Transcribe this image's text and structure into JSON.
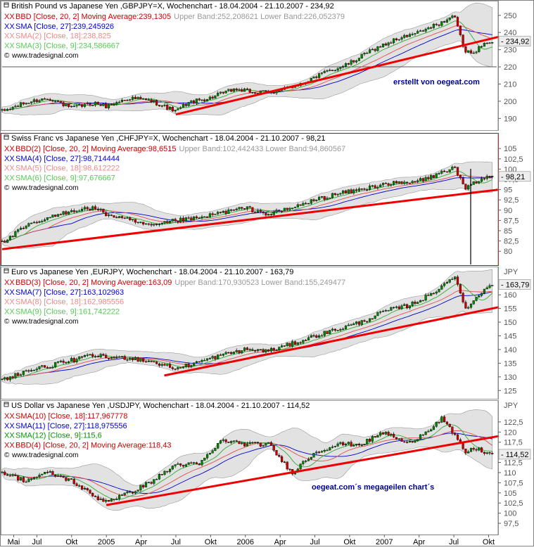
{
  "chart_data": [
    {
      "type": "line",
      "title": "British Pound vs Japanese Yen ,GBPJPY=X, Wochenchart - 18.04.2004 - 21.10.2007 - 234,92",
      "unit_label": "",
      "yticks": [
        190,
        200,
        210,
        220,
        230,
        240,
        250
      ],
      "ylim": [
        184,
        254
      ],
      "last_label": "234,92",
      "last_value": 234.92,
      "legend": [
        {
          "text": "BBD [Close, 20, 2] Moving Average:239,1305",
          "color": "#cc0000",
          "xx": true
        },
        {
          "text": "Upper Band:252,208621 Lower Band:226,052379",
          "color": "#999999",
          "xx": false
        },
        {
          "text": "SMA [Close, 27]:239,245926",
          "color": "#0000cc",
          "xx": true
        },
        {
          "text": "SMA(2) [Close, 18]:238,825",
          "color": "#ee8888",
          "xx": true
        },
        {
          "text": "SMA(3) [Close, 9]:234,586667",
          "color": "#55cc55",
          "xx": true
        }
      ],
      "watermark": "www.tradesignal.com",
      "annotation": "erstellt von oegeat.com",
      "hlines": [
        220
      ],
      "trendline": {
        "from": [
          "2005-07",
          192.3
        ],
        "to": [
          "2007-10",
          237.5
        ]
      },
      "series_points": [
        [
          "2004-04",
          194
        ],
        [
          "2004-06",
          199
        ],
        [
          "2004-08",
          202
        ],
        [
          "2004-10",
          196
        ],
        [
          "2004-12",
          199
        ],
        [
          "2005-01",
          197
        ],
        [
          "2005-03",
          202
        ],
        [
          "2005-05",
          200
        ],
        [
          "2005-07",
          194
        ],
        [
          "2005-08",
          199
        ],
        [
          "2005-10",
          202
        ],
        [
          "2005-12",
          207
        ],
        [
          "2006-02",
          205
        ],
        [
          "2006-04",
          206
        ],
        [
          "2006-06",
          211
        ],
        [
          "2006-08",
          217
        ],
        [
          "2006-10",
          222
        ],
        [
          "2006-12",
          230
        ],
        [
          "2007-02",
          236
        ],
        [
          "2007-04",
          240
        ],
        [
          "2007-06",
          246
        ],
        [
          "2007-07",
          250
        ],
        [
          "2007-08",
          228
        ],
        [
          "2007-09",
          230
        ],
        [
          "2007-10",
          234.92
        ]
      ]
    },
    {
      "type": "line",
      "title": "Swiss Franc vs Japanese Yen ,CHFJPY=X, Wochenchart - 18.04.2004 - 21.10.2007 - 98,21",
      "unit_label": "",
      "yticks": [
        80,
        82.5,
        85,
        87.5,
        90,
        92.5,
        95,
        97.5,
        100,
        102.5,
        105
      ],
      "ytick_labels": [
        "80",
        "82,5",
        "85",
        "87,5",
        "90",
        "92,5",
        "95",
        "97,5",
        "100",
        "102,5",
        "105"
      ],
      "ylim": [
        77.3,
        107.6
      ],
      "last_label": "98,21",
      "last_value": 98.21,
      "legend": [
        {
          "text": "BBD(2) [Close, 20, 2] Moving Average:98,6515",
          "color": "#cc0000",
          "xx": true
        },
        {
          "text": "Upper Band:102,442433 Lower Band:94,860567",
          "color": "#999999",
          "xx": false
        },
        {
          "text": "SMA(4) [Close, 27]:98,714444",
          "color": "#0000cc",
          "xx": true
        },
        {
          "text": "SMA(5) [Close, 18]:98,612222",
          "color": "#ee8888",
          "xx": true
        },
        {
          "text": "SMA(6) [Close, 9]:97,676667",
          "color": "#55cc55",
          "xx": true
        }
      ],
      "watermark": "www.tradesignal.com",
      "annotation": "",
      "hlines": [],
      "trendline": {
        "from": [
          "2004-04",
          80.5
        ],
        "to": [
          "2007-10",
          95.0
        ]
      },
      "series_points": [
        [
          "2004-04",
          82
        ],
        [
          "2004-06",
          86
        ],
        [
          "2004-08",
          88
        ],
        [
          "2004-10",
          90
        ],
        [
          "2004-12",
          90.5
        ],
        [
          "2005-01",
          89
        ],
        [
          "2005-03",
          87.5
        ],
        [
          "2005-05",
          86
        ],
        [
          "2005-07",
          87.5
        ],
        [
          "2005-09",
          88
        ],
        [
          "2005-11",
          89.5
        ],
        [
          "2006-01",
          90.5
        ],
        [
          "2006-03",
          89
        ],
        [
          "2006-05",
          90.5
        ],
        [
          "2006-07",
          92.5
        ],
        [
          "2006-09",
          94
        ],
        [
          "2006-11",
          95
        ],
        [
          "2007-01",
          96.5
        ],
        [
          "2007-03",
          96.5
        ],
        [
          "2007-05",
          98
        ],
        [
          "2007-07",
          100.5
        ],
        [
          "2007-08",
          95
        ],
        [
          "2007-09",
          97
        ],
        [
          "2007-10",
          98.21
        ]
      ]
    },
    {
      "type": "line",
      "title": "Euro vs Japanese Yen ,EURJPY, Wochenchart - 18.04.2004 - 21.10.2007 - 163,79",
      "unit_label": "JPY",
      "yticks": [
        125,
        130,
        135,
        140,
        145,
        150,
        155,
        160
      ],
      "ylim": [
        122.5,
        167.5
      ],
      "last_label": "163,79",
      "last_value": 163.79,
      "legend": [
        {
          "text": "BBD(3) [Close, 20, 2] Moving Average:163,09",
          "color": "#cc0000",
          "xx": true
        },
        {
          "text": "Upper Band:170,930523 Lower Band:155,249477",
          "color": "#999999",
          "xx": false
        },
        {
          "text": "SMA(7) [Close, 27]:163,102963",
          "color": "#0000cc",
          "xx": true
        },
        {
          "text": "SMA(8) [Close, 18]:162,985556",
          "color": "#ee8888",
          "xx": true
        },
        {
          "text": "SMA(9) [Close, 9]:161,742222",
          "color": "#55cc55",
          "xx": true
        }
      ],
      "watermark": "www.tradesignal.com",
      "annotation": "",
      "hlines": [],
      "trendline": {
        "from": [
          "2005-06",
          130.5
        ],
        "to": [
          "2007-10",
          155.5
        ]
      },
      "series_points": [
        [
          "2004-04",
          129
        ],
        [
          "2004-06",
          132
        ],
        [
          "2004-08",
          134
        ],
        [
          "2004-10",
          136
        ],
        [
          "2004-12",
          138
        ],
        [
          "2005-01",
          137
        ],
        [
          "2005-03",
          137
        ],
        [
          "2005-05",
          135.5
        ],
        [
          "2005-07",
          133
        ],
        [
          "2005-09",
          135.5
        ],
        [
          "2005-11",
          138
        ],
        [
          "2006-01",
          140
        ],
        [
          "2006-03",
          139.5
        ],
        [
          "2006-05",
          142
        ],
        [
          "2006-07",
          145
        ],
        [
          "2006-09",
          147.5
        ],
        [
          "2006-11",
          150
        ],
        [
          "2007-01",
          154
        ],
        [
          "2007-03",
          156
        ],
        [
          "2007-05",
          160
        ],
        [
          "2007-07",
          167
        ],
        [
          "2007-08",
          155
        ],
        [
          "2007-09",
          159
        ],
        [
          "2007-10",
          163.79
        ]
      ]
    },
    {
      "type": "line",
      "title": "US Dollar vs Japanese Yen ,USDJPY, Wochenchart - 18.04.2004 - 21.10.2007 - 114,52",
      "unit_label": "JPY",
      "yticks": [
        97.5,
        100,
        102.5,
        105,
        107.5,
        110,
        112.5,
        115,
        117.5,
        120,
        122.5
      ],
      "ytick_labels": [
        "97,5",
        "100",
        "102,5",
        "105",
        "107,5",
        "110",
        "112,5",
        "115",
        "117,5",
        "120",
        "122,5"
      ],
      "ylim": [
        95.6,
        125.6
      ],
      "last_label": "114,52",
      "last_value": 114.52,
      "legend": [
        {
          "text": "SMA(10) [Close, 18]:117,967778",
          "color": "#cc0000",
          "xx": true
        },
        {
          "text": "SMA(11) [Close, 27]:118,975556",
          "color": "#0000cc",
          "xx": true
        },
        {
          "text": "SMA(12) [Close, 9]:115,6",
          "color": "#009900",
          "xx": true
        },
        {
          "text": "BBD(4) [Close, 20, 2] Moving Average:118,43",
          "color": "#cc0000",
          "xx": true
        }
      ],
      "watermark": "www.tradesignal.com",
      "annotation": "oegeat.com´s megageilen chart´s",
      "hlines": [],
      "trendline": {
        "from": [
          "2005-01",
          102.0
        ],
        "to": [
          "2007-10",
          119.0
        ]
      },
      "series_points": [
        [
          "2004-04",
          110
        ],
        [
          "2004-06",
          108
        ],
        [
          "2004-08",
          110
        ],
        [
          "2004-10",
          108
        ],
        [
          "2004-12",
          104
        ],
        [
          "2005-01",
          103
        ],
        [
          "2005-03",
          105
        ],
        [
          "2005-05",
          108
        ],
        [
          "2005-07",
          112
        ],
        [
          "2005-09",
          112
        ],
        [
          "2005-11",
          118
        ],
        [
          "2006-01",
          117
        ],
        [
          "2006-03",
          117
        ],
        [
          "2006-05",
          110
        ],
        [
          "2006-07",
          115
        ],
        [
          "2006-09",
          117
        ],
        [
          "2006-11",
          117
        ],
        [
          "2007-01",
          120
        ],
        [
          "2007-03",
          117
        ],
        [
          "2007-05",
          121
        ],
        [
          "2007-06",
          123.5
        ],
        [
          "2007-08",
          115
        ],
        [
          "2007-09",
          116
        ],
        [
          "2007-10",
          114.52
        ]
      ]
    }
  ],
  "x_axis": {
    "start": "2004-04",
    "end": "2007-10",
    "tick_labels": [
      {
        "date": "2004-05",
        "label": "Mai"
      },
      {
        "date": "2004-07",
        "label": "Jul"
      },
      {
        "date": "2004-10",
        "label": "Okt"
      },
      {
        "date": "2005-01",
        "label": "2005"
      },
      {
        "date": "2005-04",
        "label": "Apr"
      },
      {
        "date": "2005-07",
        "label": "Jul"
      },
      {
        "date": "2005-10",
        "label": "Okt"
      },
      {
        "date": "2006-01",
        "label": "2006"
      },
      {
        "date": "2006-04",
        "label": "Apr"
      },
      {
        "date": "2006-07",
        "label": "Jul"
      },
      {
        "date": "2006-10",
        "label": "Okt"
      },
      {
        "date": "2007-01",
        "label": "2007"
      },
      {
        "date": "2007-04",
        "label": "Apr"
      },
      {
        "date": "2007-07",
        "label": "Jul"
      },
      {
        "date": "2007-10",
        "label": "Okt"
      }
    ]
  },
  "colors": {
    "trendline": "#ee0000",
    "band_fill": "#e2e2e2",
    "candle_up": "#008800",
    "candle_down": "#cc0000",
    "last_box": "#eeeeee",
    "annotation": "#000099"
  }
}
